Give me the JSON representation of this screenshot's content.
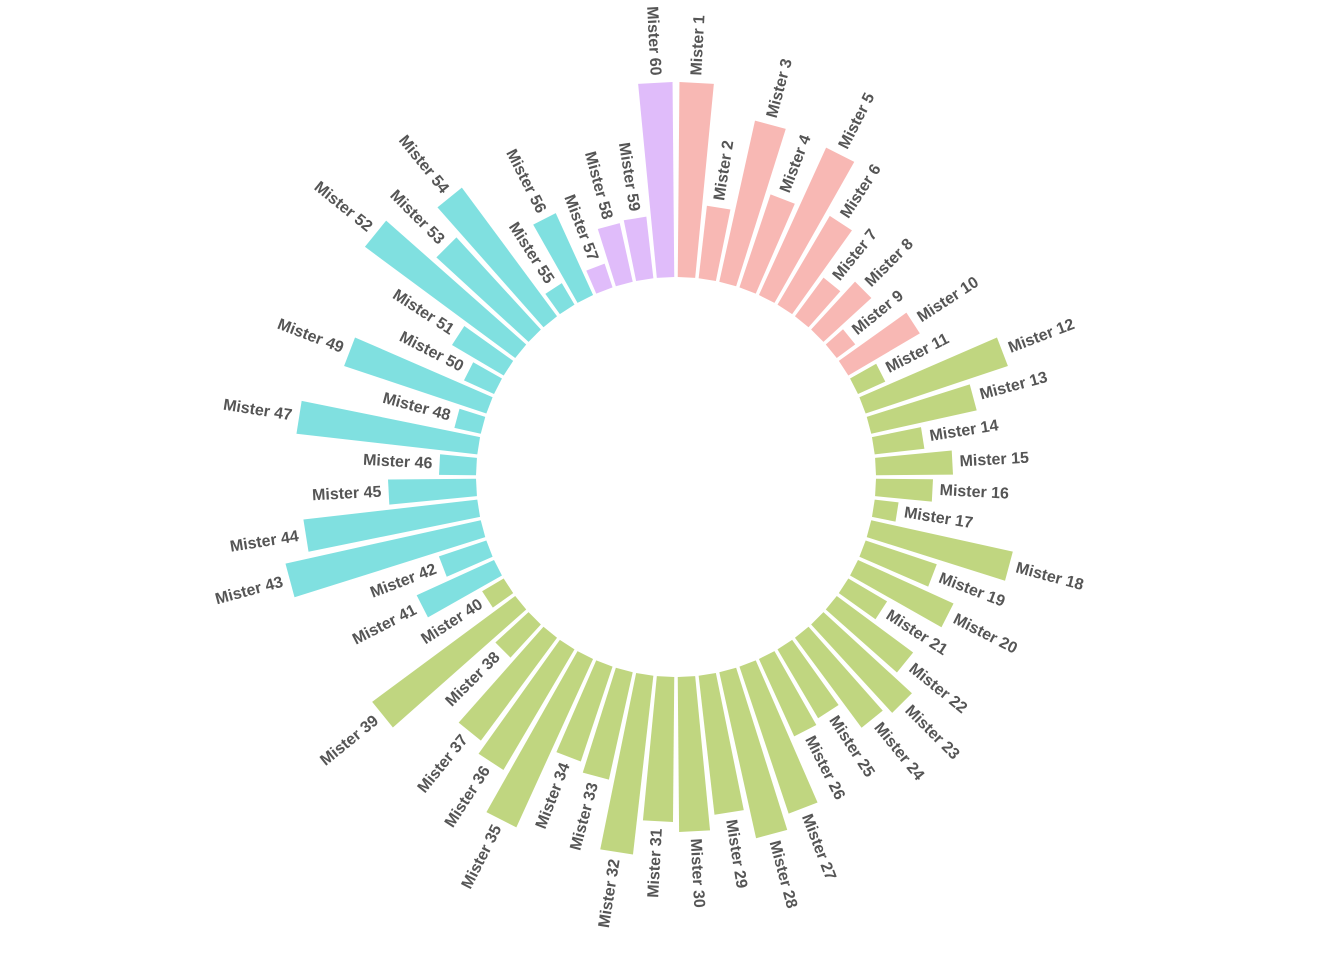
{
  "chart_data": {
    "type": "bar",
    "layout": "circular",
    "grid": false,
    "legend": "none",
    "categories": [
      "Mister 1",
      "Mister 2",
      "Mister 3",
      "Mister 4",
      "Mister 5",
      "Mister 6",
      "Mister 7",
      "Mister 8",
      "Mister 9",
      "Mister 10",
      "Mister 11",
      "Mister 12",
      "Mister 13",
      "Mister 14",
      "Mister 15",
      "Mister 16",
      "Mister 17",
      "Mister 18",
      "Mister 19",
      "Mister 20",
      "Mister 21",
      "Mister 22",
      "Mister 23",
      "Mister 24",
      "Mister 25",
      "Mister 26",
      "Mister 27",
      "Mister 28",
      "Mister 29",
      "Mister 30",
      "Mister 31",
      "Mister 32",
      "Mister 33",
      "Mister 34",
      "Mister 35",
      "Mister 36",
      "Mister 37",
      "Mister 38",
      "Mister 39",
      "Mister 40",
      "Mister 41",
      "Mister 42",
      "Mister 43",
      "Mister 44",
      "Mister 45",
      "Mister 46",
      "Mister 47",
      "Mister 48",
      "Mister 49",
      "Mister 50",
      "Mister 51",
      "Mister 52",
      "Mister 53",
      "Mister 54",
      "Mister 55",
      "Mister 56",
      "Mister 57",
      "Mister 58",
      "Mister 59",
      "Mister 60"
    ],
    "values": [
      195,
      73,
      165,
      98,
      162,
      103,
      48,
      65,
      23,
      83,
      30,
      150,
      108,
      50,
      77,
      57,
      24,
      145,
      75,
      105,
      45,
      95,
      120,
      112,
      80,
      85,
      155,
      170,
      140,
      155,
      145,
      180,
      110,
      100,
      185,
      140,
      128,
      45,
      178,
      25,
      85,
      50,
      200,
      175,
      88,
      37,
      182,
      27,
      150,
      33,
      60,
      187,
      125,
      160,
      25,
      90,
      25,
      60,
      62,
      195
    ],
    "groups": [
      {
        "label": "",
        "from": 1,
        "to": 10,
        "color": "#F8B8B4"
      },
      {
        "label": "",
        "from": 11,
        "to": 40,
        "color": "#C0D680"
      },
      {
        "label": "",
        "from": 41,
        "to": 56,
        "color": "#80E0E0"
      },
      {
        "label": "",
        "from": 57,
        "to": 60,
        "color": "#E0BCFA"
      }
    ],
    "ylim": [
      0,
      200
    ],
    "title": "",
    "xlabel": "",
    "ylabel": ""
  }
}
